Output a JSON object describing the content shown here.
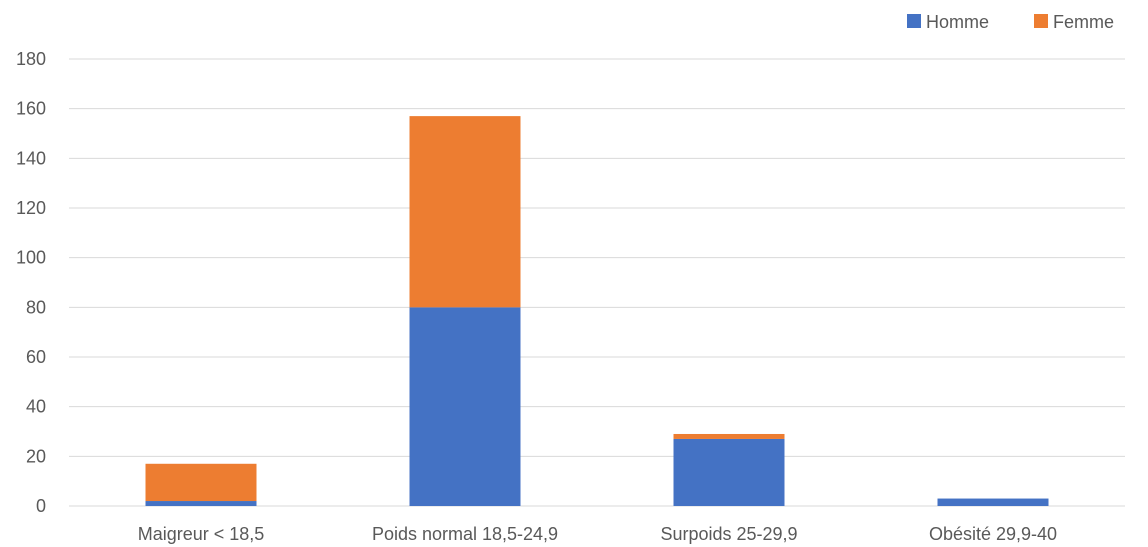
{
  "chart_data": {
    "type": "bar",
    "stacked": true,
    "categories": [
      "Maigreur < 18,5",
      "Poids normal 18,5-24,9",
      "Surpoids 25-29,9",
      "Obésité 29,9-40"
    ],
    "series": [
      {
        "name": "Homme",
        "color": "#4472c4",
        "values": [
          2,
          80,
          27,
          3
        ]
      },
      {
        "name": "Femme",
        "color": "#ed7d31",
        "values": [
          15,
          77,
          2,
          0
        ]
      }
    ],
    "title": "",
    "xlabel": "",
    "ylabel": "",
    "ylim": [
      0,
      180
    ],
    "yticks": [
      "0",
      "20",
      "40",
      "60",
      "80",
      "100",
      "120",
      "140",
      "160",
      "180"
    ],
    "grid": true,
    "legend_position": "top-right"
  }
}
